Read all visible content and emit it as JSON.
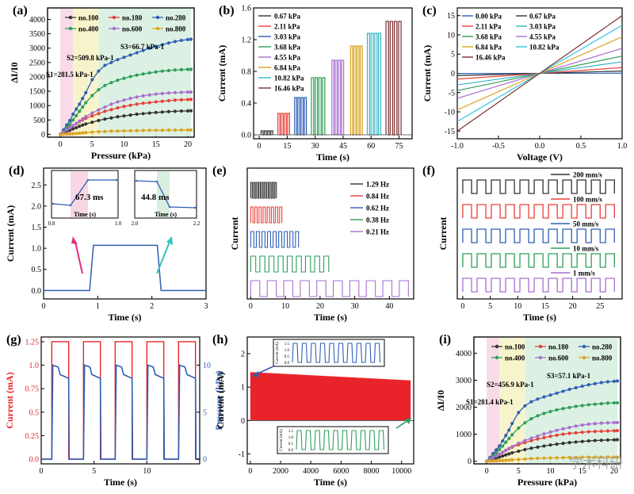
{
  "figure": {
    "panels": [
      "(a)",
      "(b)",
      "(c)",
      "(d)",
      "(e)",
      "(f)",
      "(g)",
      "(h)",
      "(i)"
    ]
  },
  "colors": {
    "no100": "#333333",
    "no180": "#e8403a",
    "no280": "#2f5fb5",
    "no400": "#2e9e5b",
    "no600": "#a96fd0",
    "no800": "#d9a521",
    "pink": "#f7d6e6",
    "yellow": "#f6f3c6",
    "green": "#d8efe0",
    "red": "#e8242a",
    "blue": "#2f5fb5",
    "cyan": "#35c3c3",
    "magenta": "#e0307f"
  },
  "chart_data": [
    {
      "panel": "a",
      "type": "line",
      "xlabel": "Pressure (kPa)",
      "ylabel": "ΔI/I0",
      "xlim": [
        -2,
        21
      ],
      "ylim": [
        -100,
        4400
      ],
      "xticks": [
        0,
        5,
        10,
        15,
        20
      ],
      "yticks": [
        0,
        500,
        1000,
        1500,
        2000,
        2500,
        3000,
        3500,
        4000
      ],
      "x": [
        0,
        0.5,
        1,
        1.5,
        2,
        2.5,
        3,
        3.5,
        4,
        5,
        6,
        7,
        8,
        9,
        10,
        11,
        12,
        13,
        14,
        15,
        16,
        17,
        18,
        19,
        20,
        20.5
      ],
      "series": [
        {
          "name": "no.100",
          "values": [
            0,
            40,
            90,
            140,
            190,
            230,
            280,
            320,
            360,
            420,
            480,
            530,
            570,
            610,
            640,
            670,
            700,
            720,
            740,
            760,
            775,
            790,
            800,
            810,
            815,
            820
          ]
        },
        {
          "name": "no.180",
          "values": [
            0,
            80,
            160,
            240,
            300,
            370,
            440,
            500,
            560,
            640,
            720,
            800,
            860,
            920,
            970,
            1010,
            1050,
            1080,
            1100,
            1130,
            1150,
            1170,
            1190,
            1200,
            1210,
            1215
          ]
        },
        {
          "name": "no.280",
          "values": [
            0,
            150,
            320,
            480,
            700,
            880,
            1050,
            1250,
            1450,
            1900,
            2200,
            2400,
            2500,
            2600,
            2680,
            2760,
            2840,
            2920,
            3000,
            3060,
            3120,
            3180,
            3230,
            3270,
            3300,
            3310
          ]
        },
        {
          "name": "no.400",
          "values": [
            0,
            100,
            230,
            350,
            500,
            650,
            800,
            950,
            1100,
            1350,
            1550,
            1700,
            1800,
            1880,
            1950,
            2010,
            2060,
            2100,
            2140,
            2170,
            2200,
            2220,
            2240,
            2250,
            2260,
            2260
          ]
        },
        {
          "name": "no.600",
          "values": [
            0,
            70,
            150,
            220,
            300,
            380,
            460,
            540,
            620,
            740,
            850,
            950,
            1050,
            1130,
            1190,
            1250,
            1300,
            1340,
            1370,
            1400,
            1420,
            1440,
            1450,
            1460,
            1470,
            1470
          ]
        },
        {
          "name": "no.800",
          "values": [
            0,
            5,
            10,
            15,
            20,
            30,
            40,
            50,
            60,
            75,
            90,
            100,
            110,
            115,
            120,
            125,
            130,
            135,
            138,
            140,
            142,
            145,
            148,
            150,
            150,
            150
          ]
        }
      ],
      "regions": [
        "pink",
        "yellow",
        "green"
      ],
      "annotations": [
        "S1=281.5 kPa-1",
        "S2=509.8 kPa-1",
        "S3=66.7 kPa-1"
      ]
    },
    {
      "panel": "b",
      "type": "line",
      "xlabel": "Time (s)",
      "ylabel": "Current (mA)",
      "xlim": [
        -3,
        82
      ],
      "ylim": [
        -0.05,
        1.6
      ],
      "xticks": [
        0,
        15,
        30,
        45,
        60,
        75
      ],
      "yticks": [
        0.0,
        0.4,
        0.8,
        1.2,
        1.6
      ],
      "series": [
        {
          "name": "0.67   kPa",
          "level": 0.05,
          "t0": 1,
          "t1": 8
        },
        {
          "name": "2.11   kPa",
          "level": 0.27,
          "t0": 10,
          "t1": 17
        },
        {
          "name": "3.03   kPa",
          "level": 0.47,
          "t0": 19,
          "t1": 26
        },
        {
          "name": "3.68   kPa",
          "level": 0.72,
          "t0": 28,
          "t1": 36
        },
        {
          "name": "4.55   kPa",
          "level": 0.94,
          "t0": 39,
          "t1": 46
        },
        {
          "name": "6.84   kPa",
          "level": 1.12,
          "t0": 49,
          "t1": 56
        },
        {
          "name": "10.82  kPa",
          "level": 1.28,
          "t0": 58,
          "t1": 66
        },
        {
          "name": "16.46  kPa",
          "level": 1.43,
          "t0": 68,
          "t1": 77
        }
      ]
    },
    {
      "panel": "c",
      "type": "line",
      "xlabel": "Voltage (V)",
      "ylabel": "Current (mA)",
      "xlim": [
        -1,
        1
      ],
      "ylim": [
        -17,
        17
      ],
      "xticks": [
        -1.0,
        -0.5,
        0.0,
        0.5,
        1.0
      ],
      "yticks": [
        -15,
        -10,
        -5,
        0,
        5,
        10,
        15
      ],
      "series": [
        {
          "name": "0.00   kPa",
          "slope": 0.05
        },
        {
          "name": "0.67   kPa",
          "slope": 0.6
        },
        {
          "name": "2.11   kPa",
          "slope": 1.5
        },
        {
          "name": "3.03   kPa",
          "slope": 3.0
        },
        {
          "name": "3.68   kPa",
          "slope": 4.5
        },
        {
          "name": "4.55   kPa",
          "slope": 6.5
        },
        {
          "name": "6.84   kPa",
          "slope": 9.5
        },
        {
          "name": "10.82  kPa",
          "slope": 12.5
        },
        {
          "name": "16.46  kPa",
          "slope": 15.0
        }
      ]
    },
    {
      "panel": "d",
      "type": "line",
      "xlabel": "Time (s)",
      "ylabel": "Current (mA)",
      "xlim": [
        0,
        3
      ],
      "ylim": [
        -0.2,
        2.9
      ],
      "xticks": [
        0,
        1,
        2,
        3
      ],
      "yticks": [
        0.0,
        0.5,
        1.0,
        1.5,
        2.0,
        2.5
      ],
      "x": [
        0,
        0.85,
        0.92,
        2.1,
        2.17,
        3
      ],
      "values": [
        0,
        0,
        1.07,
        1.07,
        0,
        0
      ],
      "insets": [
        {
          "label": "67.3 ms",
          "xlabel": "Time (s)",
          "xticks": [
            "0.8",
            "1.0"
          ]
        },
        {
          "label": "44.8 ms",
          "xlabel": "Time (s)",
          "xticks": [
            "2.0",
            "2.2"
          ]
        }
      ]
    },
    {
      "panel": "e",
      "type": "line",
      "xlabel": "Time (s)",
      "ylabel": "Current",
      "xlim": [
        -1,
        47
      ],
      "xticks": [
        0,
        10,
        20,
        30,
        40
      ],
      "series": [
        {
          "name": "1.29 Hz",
          "freq": 1.29,
          "dur": 7.5
        },
        {
          "name": "0.84 Hz",
          "freq": 0.84,
          "dur": 9.5
        },
        {
          "name": "0.62 Hz",
          "freq": 0.62,
          "dur": 13
        },
        {
          "name": "0.38 Hz",
          "freq": 0.38,
          "dur": 22
        },
        {
          "name": "0.21 Hz",
          "freq": 0.21,
          "dur": 46
        }
      ]
    },
    {
      "panel": "f",
      "type": "line",
      "xlabel": "Time (s)",
      "ylabel": "Current",
      "xlim": [
        -1,
        29
      ],
      "xticks": [
        0,
        5,
        10,
        15,
        20,
        25
      ],
      "series": [
        {
          "name": "200 mm/s"
        },
        {
          "name": "100 mm/s"
        },
        {
          "name": "50 mm/s"
        },
        {
          "name": "10 mm/s"
        },
        {
          "name": "1 mm/s"
        }
      ]
    },
    {
      "panel": "g",
      "type": "line",
      "xlabel": "Time (s)",
      "ylabel": "Current (mA)",
      "y2label": "Pressure (kPa)",
      "xlim": [
        0,
        15
      ],
      "ylim": [
        -0.05,
        1.3
      ],
      "y2lim": [
        -0.5,
        13
      ],
      "xticks": [
        0,
        5,
        10
      ],
      "yticks": [
        0.0,
        0.25,
        0.5,
        0.75,
        1.0,
        1.25
      ],
      "y2ticks": [
        0,
        5,
        10
      ],
      "pulses": [
        [
          1,
          2.6
        ],
        [
          4,
          5.6
        ],
        [
          7,
          8.6
        ],
        [
          10,
          11.6
        ],
        [
          13,
          14.6
        ]
      ],
      "current_level": 1.25,
      "pressure_level": 10
    },
    {
      "panel": "h",
      "type": "area",
      "xlabel": "Time (s)",
      "ylabel": "Current (mA)",
      "xlim": [
        -200,
        10800
      ],
      "ylim": [
        -1.3,
        2.5
      ],
      "xticks": [
        0,
        2000,
        4000,
        6000,
        8000,
        10000
      ],
      "yticks": [
        -1,
        0,
        1,
        2
      ],
      "start_level": 1.45,
      "end_level": 1.2,
      "insets": [
        {
          "ylabel": "Current (mA)",
          "yticks": [
            "1.5",
            "1.0",
            "0.5",
            "0.0"
          ]
        },
        {
          "ylabel": "Current (mA)",
          "yticks": [
            "1.5",
            "1.0",
            "0.5",
            "0.0"
          ]
        }
      ]
    },
    {
      "panel": "i",
      "type": "line",
      "xlabel": "Pressure (kPa)",
      "ylabel": "ΔI/I0",
      "xlim": [
        -2,
        21
      ],
      "ylim": [
        -100,
        4600
      ],
      "xticks": [
        0,
        5,
        10,
        15,
        20
      ],
      "yticks": [
        0,
        1000,
        2000,
        3000,
        4000
      ],
      "x": [
        0,
        0.5,
        1,
        1.5,
        2,
        2.5,
        3,
        3.5,
        4,
        5,
        6,
        7,
        8,
        9,
        10,
        11,
        12,
        13,
        14,
        15,
        16,
        17,
        18,
        19,
        20,
        20.5
      ],
      "series": [
        {
          "name": "no.100",
          "values": [
            0,
            30,
            70,
            110,
            150,
            190,
            230,
            270,
            310,
            370,
            430,
            480,
            520,
            560,
            600,
            630,
            660,
            690,
            710,
            730,
            750,
            765,
            775,
            785,
            790,
            795
          ]
        },
        {
          "name": "no.180",
          "values": [
            0,
            60,
            130,
            200,
            260,
            330,
            400,
            460,
            520,
            610,
            690,
            760,
            820,
            870,
            920,
            960,
            1000,
            1030,
            1050,
            1070,
            1090,
            1100,
            1110,
            1120,
            1125,
            1130
          ]
        },
        {
          "name": "no.280",
          "values": [
            0,
            130,
            280,
            420,
            560,
            750,
            950,
            1150,
            1400,
            1800,
            2050,
            2200,
            2300,
            2380,
            2450,
            2520,
            2590,
            2660,
            2720,
            2780,
            2830,
            2870,
            2910,
            2940,
            2960,
            2970
          ]
        },
        {
          "name": "no.400",
          "values": [
            0,
            90,
            200,
            310,
            430,
            560,
            700,
            840,
            980,
            1230,
            1420,
            1570,
            1680,
            1770,
            1840,
            1900,
            1950,
            1990,
            2030,
            2060,
            2090,
            2110,
            2130,
            2150,
            2160,
            2160
          ]
        },
        {
          "name": "no.600",
          "values": [
            0,
            60,
            130,
            190,
            260,
            330,
            400,
            470,
            540,
            660,
            760,
            850,
            930,
            1010,
            1080,
            1140,
            1200,
            1250,
            1300,
            1340,
            1370,
            1390,
            1410,
            1420,
            1430,
            1430
          ]
        },
        {
          "name": "no.800",
          "values": [
            0,
            5,
            10,
            15,
            20,
            25,
            30,
            40,
            50,
            65,
            80,
            95,
            105,
            115,
            120,
            125,
            130,
            135,
            140,
            145,
            148,
            150,
            150,
            150,
            150,
            150
          ]
        }
      ],
      "annotations": [
        "S1=281.4 kPa-1",
        "S2=456.9 kPa-1",
        "S3=57.1 kPa-1"
      ],
      "watermark": "学术科研"
    }
  ]
}
